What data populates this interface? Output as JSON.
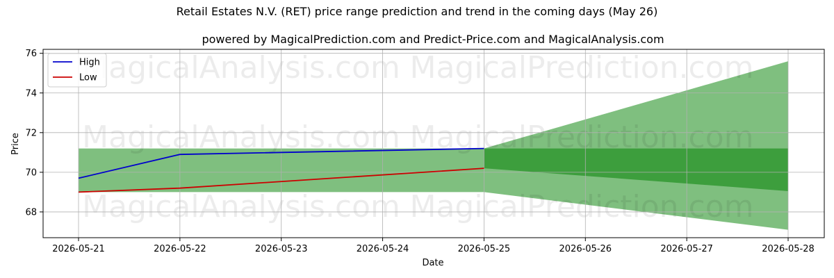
{
  "chart_data": {
    "type": "line",
    "title": "Retail Estates N.V. (RET) price range prediction and trend in the coming days (May 26)",
    "subtitle": "powered by MagicalPrediction.com and Predict-Price.com and MagicalAnalysis.com",
    "xlabel": "Date",
    "ylabel": "Price",
    "x_ticks": [
      "2026-05-21",
      "2026-05-22",
      "2026-05-23",
      "2026-05-24",
      "2026-05-25",
      "2026-05-26",
      "2026-05-27",
      "2026-05-28"
    ],
    "y_ticks": [
      68,
      70,
      72,
      74,
      76
    ],
    "ylim": [
      66.7,
      76.2
    ],
    "grid": true,
    "legend_position": "top-left",
    "series": [
      {
        "name": "High",
        "color": "#0000cc",
        "x": [
          0,
          1,
          4
        ],
        "values": [
          69.7,
          70.9,
          71.2
        ]
      },
      {
        "name": "Low",
        "color": "#cc0000",
        "x": [
          0,
          1,
          4
        ],
        "values": [
          69.0,
          69.2,
          70.2
        ]
      }
    ],
    "bands": [
      {
        "color": "#7fbf7f",
        "x": [
          0,
          4
        ],
        "upper": [
          71.2,
          71.2
        ],
        "lower": [
          69.0,
          69.0
        ]
      },
      {
        "color": "#7fbf7f",
        "x": [
          4,
          7
        ],
        "upper": [
          71.2,
          75.6
        ],
        "lower": [
          69.0,
          67.1
        ]
      },
      {
        "color": "#3d9e3d",
        "x": [
          4,
          7
        ],
        "upper": [
          71.2,
          71.2
        ],
        "lower": [
          70.2,
          69.05
        ]
      }
    ],
    "watermarks": [
      "MagicalAnalysis.com",
      "MagicalPrediction.com",
      "MagicalAnalysis.com",
      "MagicalPrediction.com",
      "MagicalAnalysis.com",
      "MagicalPrediction.com"
    ]
  }
}
